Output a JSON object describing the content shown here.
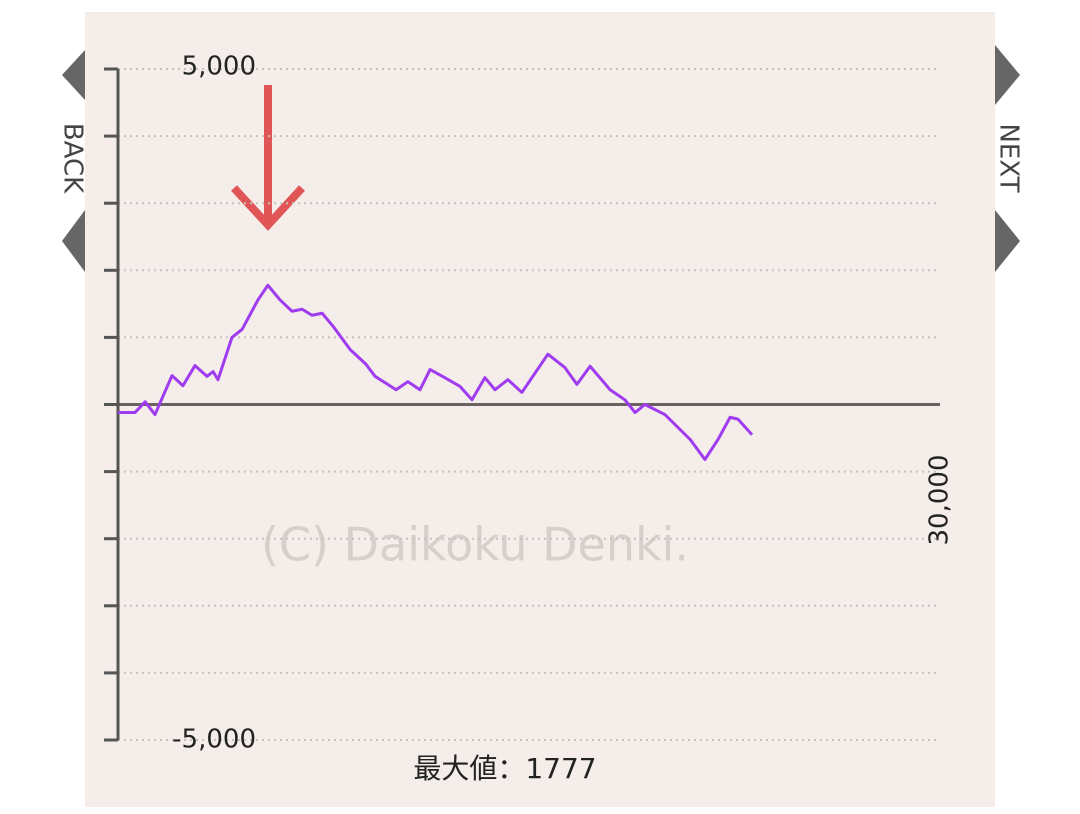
{
  "chart_data": {
    "type": "line",
    "x_label_right": null,
    "x": [
      0,
      620,
      990,
      1350,
      1970,
      2370,
      2810,
      3250,
      3470,
      3650,
      4160,
      4530,
      5110,
      5470,
      5910,
      6350,
      6720,
      7080,
      7450,
      7880,
      8470,
      9050,
      9380,
      10150,
      10580,
      11020,
      11390,
      11930,
      12480,
      12920,
      13390,
      13760,
      14230,
      14740,
      15690,
      16310,
      16750,
      17230,
      17960,
      18500,
      18870,
      19230,
      19960,
      20880,
      21420,
      21900,
      22340,
      22630,
      23140
    ],
    "values": [
      -120,
      -120,
      40,
      -150,
      430,
      280,
      580,
      420,
      490,
      370,
      1000,
      1120,
      1560,
      1777,
      1560,
      1390,
      1420,
      1330,
      1360,
      1150,
      820,
      600,
      420,
      220,
      340,
      220,
      520,
      400,
      270,
      70,
      400,
      220,
      370,
      180,
      750,
      550,
      300,
      570,
      220,
      70,
      -120,
      0,
      -150,
      -520,
      -820,
      -520,
      -190,
      -220,
      -450
    ],
    "color": "#a03cf0",
    "xlim": [
      0,
      30000
    ],
    "xticks": [
      {
        "value": 30000,
        "label": "30,000"
      }
    ],
    "ylim": [
      -5000,
      5000
    ],
    "yticks": [
      {
        "value": -5000,
        "label": "-5,000"
      },
      {
        "value": 5000,
        "label": "5,000"
      }
    ],
    "yminor": [
      -4000,
      -3000,
      -2000,
      -1000,
      0,
      1000,
      2000,
      3000,
      4000
    ],
    "grid": true,
    "watermark": "(C) Daikoku Denki.",
    "max_label": "最大値：1777",
    "back": "BACK",
    "next": "NEXT"
  }
}
